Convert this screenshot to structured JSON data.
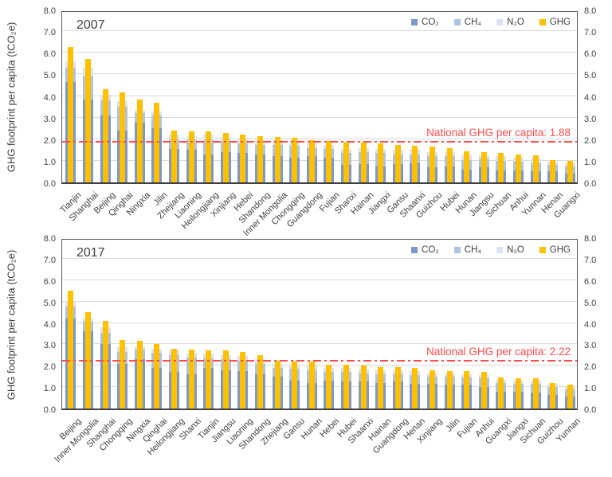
{
  "colors": {
    "co2": "#7B98CA",
    "ch4": "#AEC3E2",
    "n2o": "#DAE3F2",
    "ghg": "#FFC000",
    "reference_line": "#FF4B4B",
    "grid": "#D9D9D9",
    "axis_text": "#404040"
  },
  "chart_data": [
    {
      "type": "bar",
      "title": "2007",
      "ylabel": "GHG footprint per capita (tCO₂e)",
      "ylim": [
        0,
        8
      ],
      "yticks": [
        "0.0",
        "1.0",
        "2.0",
        "3.0",
        "4.0",
        "5.0",
        "6.0",
        "7.0",
        "8.0"
      ],
      "grid": true,
      "legend_position": "top-right-inside",
      "annotation": "National GHG per capita: 1.88",
      "reference_value": 1.88,
      "categories": [
        "Tianjin",
        "Shanghai",
        "Beijing",
        "Qinghai",
        "Ningxia",
        "Jilin",
        "Zhejiang",
        "Liaoning",
        "Heilongjiang",
        "Xinjiang",
        "Hebei",
        "Shandong",
        "Inner Mongolia",
        "Chongqing",
        "Guangdong",
        "Fujian",
        "Shanxi",
        "Hainan",
        "Jiangxi",
        "Gansu",
        "Shaanxi",
        "Guizhou",
        "Hubei",
        "Hunan",
        "Jiangsu",
        "Sichuan",
        "Anhui",
        "Yunnan",
        "Henan",
        "Guangxi"
      ],
      "series": [
        {
          "key": "co2",
          "name": "CO₂",
          "values": [
            4.65,
            3.85,
            3.1,
            2.4,
            2.75,
            2.5,
            1.55,
            1.5,
            1.3,
            1.4,
            1.35,
            1.3,
            1.2,
            1.15,
            1.2,
            1.15,
            0.8,
            0.85,
            0.75,
            0.85,
            0.9,
            0.7,
            0.75,
            0.6,
            0.7,
            0.55,
            0.55,
            0.5,
            0.5,
            0.4
          ]
        },
        {
          "key": "ch4",
          "name": "CH₄",
          "values": [
            0.65,
            1.05,
            0.7,
            1.1,
            0.45,
            0.6,
            0.45,
            0.45,
            0.65,
            0.5,
            0.45,
            0.45,
            0.55,
            0.55,
            0.4,
            0.4,
            0.55,
            0.55,
            0.6,
            0.45,
            0.4,
            0.5,
            0.45,
            0.45,
            0.4,
            0.45,
            0.4,
            0.4,
            0.3,
            0.35
          ]
        },
        {
          "key": "n2o",
          "name": "N₂O",
          "values": [
            0.3,
            0.4,
            0.25,
            0.25,
            0.15,
            0.2,
            0.2,
            0.2,
            0.25,
            0.2,
            0.2,
            0.2,
            0.2,
            0.2,
            0.2,
            0.2,
            0.2,
            0.2,
            0.2,
            0.2,
            0.2,
            0.2,
            0.2,
            0.2,
            0.15,
            0.2,
            0.2,
            0.2,
            0.15,
            0.15
          ]
        },
        {
          "key": "ghg",
          "name": "GHG",
          "values": [
            6.25,
            5.7,
            4.3,
            4.15,
            3.85,
            3.7,
            2.4,
            2.35,
            2.35,
            2.3,
            2.2,
            2.15,
            2.1,
            2.05,
            1.95,
            1.9,
            1.85,
            1.85,
            1.8,
            1.75,
            1.7,
            1.65,
            1.6,
            1.45,
            1.4,
            1.35,
            1.3,
            1.25,
            1.05,
            1.0
          ]
        }
      ]
    },
    {
      "type": "bar",
      "title": "2017",
      "ylabel": "GHG footprint per capita (tCO₂e)",
      "ylim": [
        0,
        8
      ],
      "yticks": [
        "0.0",
        "1.0",
        "2.0",
        "3.0",
        "4.0",
        "5.0",
        "6.0",
        "7.0",
        "8.0"
      ],
      "grid": true,
      "legend_position": "top-right-inside",
      "annotation": "National GHG per capita: 2.22",
      "reference_value": 2.22,
      "categories": [
        "Beijing",
        "Inner Mongolia",
        "Shanghai",
        "Chongqing",
        "Ningxia",
        "Qinghai",
        "Heilongjiang",
        "Shanxi",
        "Tianjin",
        "Jiangsu",
        "Liaoning",
        "Shandong",
        "Zhejiang",
        "Gansu",
        "Hunan",
        "Hebei",
        "Hubei",
        "Shaanxi",
        "Hainan",
        "Guangdong",
        "Henan",
        "Xinjiang",
        "Jilin",
        "Fujian",
        "Anhui",
        "Guangxi",
        "Jiangxi",
        "Sichuan",
        "Guizhou",
        "Yunnan"
      ],
      "series": [
        {
          "key": "co2",
          "name": "CO₂",
          "values": [
            4.2,
            3.6,
            3.0,
            2.1,
            2.3,
            1.9,
            1.7,
            1.6,
            1.9,
            1.8,
            1.75,
            1.6,
            1.5,
            1.3,
            1.2,
            1.3,
            1.25,
            1.25,
            1.2,
            1.25,
            1.15,
            1.15,
            1.1,
            1.1,
            1.0,
            0.8,
            0.8,
            0.75,
            0.65,
            0.55
          ]
        },
        {
          "key": "ch4",
          "name": "CH₄",
          "values": [
            0.55,
            0.45,
            0.55,
            0.55,
            0.45,
            0.7,
            0.8,
            0.8,
            0.45,
            0.5,
            0.5,
            0.5,
            0.4,
            0.55,
            0.6,
            0.4,
            0.45,
            0.4,
            0.4,
            0.35,
            0.4,
            0.35,
            0.4,
            0.35,
            0.4,
            0.4,
            0.35,
            0.4,
            0.35,
            0.35
          ]
        },
        {
          "key": "n2o",
          "name": "N₂O",
          "values": [
            0.25,
            0.15,
            0.25,
            0.2,
            0.15,
            0.2,
            0.25,
            0.2,
            0.2,
            0.2,
            0.2,
            0.2,
            0.2,
            0.2,
            0.2,
            0.2,
            0.2,
            0.2,
            0.2,
            0.2,
            0.2,
            0.15,
            0.15,
            0.15,
            0.15,
            0.15,
            0.15,
            0.15,
            0.15,
            0.15
          ]
        },
        {
          "key": "ghg",
          "name": "GHG",
          "values": [
            5.5,
            4.5,
            4.1,
            3.2,
            3.15,
            3.0,
            2.8,
            2.75,
            2.7,
            2.7,
            2.65,
            2.5,
            2.25,
            2.2,
            2.2,
            2.05,
            2.05,
            2.0,
            1.95,
            1.95,
            1.9,
            1.8,
            1.75,
            1.75,
            1.7,
            1.45,
            1.4,
            1.4,
            1.2,
            1.1
          ]
        }
      ]
    }
  ]
}
